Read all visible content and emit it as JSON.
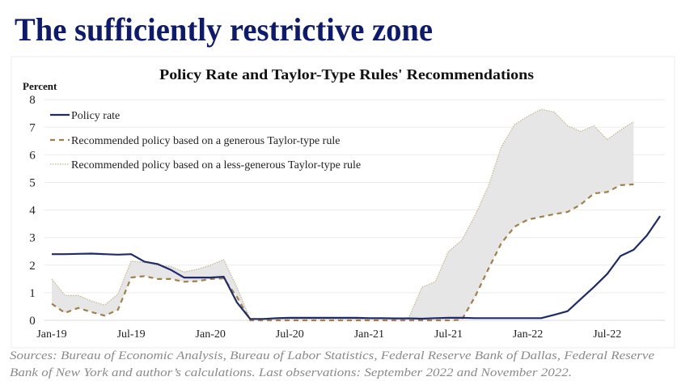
{
  "page_title": "The sufficiently restrictive zone",
  "source_lines": [
    "Sources: Bureau of Economic Analysis, Bureau of Labor Statistics, Federal Reserve Bank of Dallas, Federal Reserve",
    "Bank of New York and author’s calculations. Last observations: September 2022 and November 2022."
  ],
  "colors": {
    "title": "#0d1a6e",
    "policy": "#1f2a6b",
    "generous": "#a0804a",
    "less_generous": "#c8b894",
    "band": "#e6e6e6",
    "source": "#8a8a8a"
  },
  "chart_data": {
    "type": "line",
    "title": "Policy Rate and Taylor-Type Rules' Recommendations",
    "ylabel": "Percent",
    "ylim": [
      0,
      8
    ],
    "yticks": [
      "0",
      "1",
      "2",
      "3",
      "4",
      "5",
      "6",
      "7",
      "8"
    ],
    "grid": true,
    "legend_position": "top-left",
    "x_start": "2019-01",
    "x_frequency": "monthly",
    "xticks": [
      {
        "label": "Jan-19",
        "month": "2019-01"
      },
      {
        "label": "Jul-19",
        "month": "2019-07"
      },
      {
        "label": "Jan-20",
        "month": "2020-01"
      },
      {
        "label": "Jul-20",
        "month": "2020-07"
      },
      {
        "label": "Jan-21",
        "month": "2021-01"
      },
      {
        "label": "Jul-21",
        "month": "2021-07"
      },
      {
        "label": "Jan-22",
        "month": "2022-01"
      },
      {
        "label": "Jul-22",
        "month": "2022-07"
      }
    ],
    "shaded_band": "between less-generous and generous rule",
    "series": [
      {
        "name": "Policy rate",
        "style": "solid",
        "values": [
          2.4,
          2.4,
          2.41,
          2.42,
          2.4,
          2.38,
          2.4,
          2.13,
          2.04,
          1.83,
          1.55,
          1.55,
          1.55,
          1.58,
          0.65,
          0.05,
          0.05,
          0.08,
          0.09,
          0.09,
          0.09,
          0.09,
          0.09,
          0.09,
          0.08,
          0.08,
          0.07,
          0.07,
          0.06,
          0.08,
          0.09,
          0.09,
          0.08,
          0.08,
          0.08,
          0.08,
          0.08,
          0.08,
          0.2,
          0.33,
          0.77,
          1.21,
          1.68,
          2.33,
          2.56,
          3.08,
          3.78
        ]
      },
      {
        "name": "Recommended policy based on a generous Taylor-type rule",
        "style": "dashed",
        "values": [
          0.6,
          0.27,
          0.45,
          0.3,
          0.17,
          0.38,
          1.55,
          1.6,
          1.5,
          1.5,
          1.4,
          1.42,
          1.5,
          1.52,
          0.85,
          0.0,
          0.0,
          0.0,
          0.0,
          0.0,
          0.0,
          0.0,
          0.0,
          0.0,
          0.0,
          0.0,
          0.0,
          0.0,
          0.0,
          0.0,
          0.0,
          0.02,
          0.85,
          1.85,
          2.8,
          3.4,
          3.65,
          3.75,
          3.85,
          3.93,
          4.2,
          4.6,
          4.65,
          4.9,
          4.93
        ]
      },
      {
        "name": "Recommended policy based on a less-generous Taylor-type rule",
        "style": "dotted",
        "values": [
          1.5,
          0.9,
          0.9,
          0.7,
          0.55,
          0.95,
          2.15,
          2.1,
          2.0,
          1.95,
          1.75,
          1.85,
          2.0,
          2.2,
          1.2,
          0.05,
          0.05,
          0.05,
          0.05,
          0.05,
          0.05,
          0.05,
          0.05,
          0.05,
          0.05,
          0.05,
          0.05,
          0.1,
          1.2,
          1.4,
          2.5,
          2.9,
          3.8,
          4.85,
          6.3,
          7.1,
          7.4,
          7.65,
          7.55,
          7.05,
          6.85,
          7.05,
          6.55,
          6.9,
          7.2
        ]
      }
    ]
  }
}
